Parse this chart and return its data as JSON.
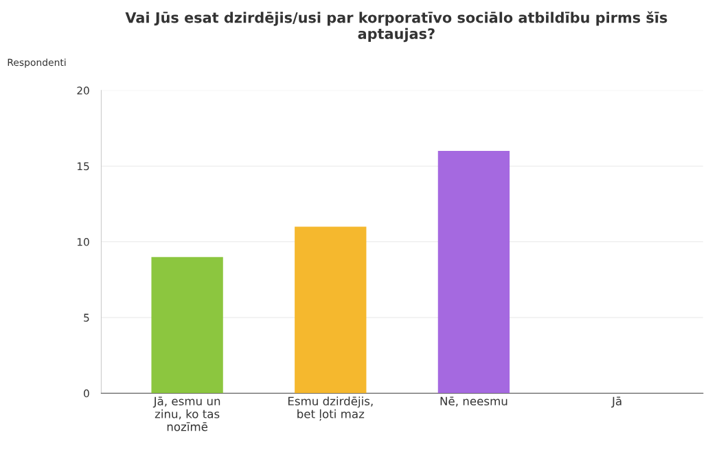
{
  "chart_data": {
    "type": "bar",
    "title": "Vai Jūs esat dzirdējis/usi par korporatīvo sociālo atbildību pirms šīs aptaujas?",
    "ylabel": "Respondenti",
    "categories": [
      "Jā, esmu un zinu, ko tas nozīmē",
      "Esmu dzirdējis, bet ļoti maz",
      "Nē, neesmu",
      "Jā"
    ],
    "values": [
      9,
      11,
      16,
      0
    ],
    "colors": [
      "#8cc63f",
      "#f5b82e",
      "#a569e0",
      "#cccccc"
    ],
    "ylim": [
      0,
      20
    ],
    "yticks": [
      0,
      5,
      10,
      15,
      20
    ],
    "grid": "y"
  }
}
